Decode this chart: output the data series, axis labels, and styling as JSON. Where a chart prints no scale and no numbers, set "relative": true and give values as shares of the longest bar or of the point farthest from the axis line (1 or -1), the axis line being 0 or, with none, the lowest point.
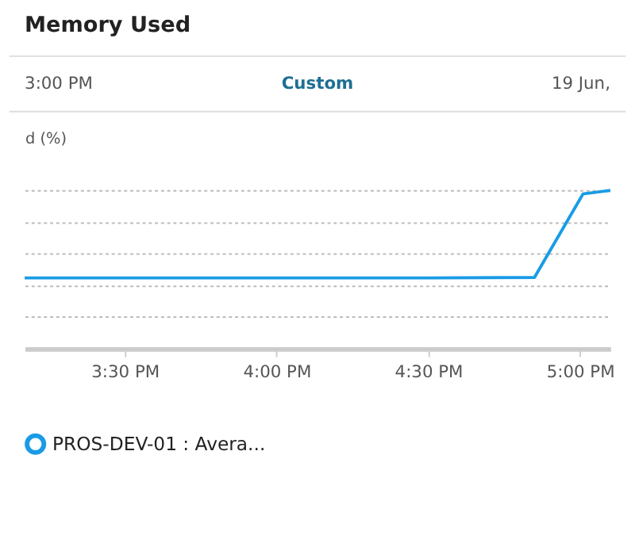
{
  "chart_data": {
    "type": "line",
    "title": "Memory Used",
    "annotations": [
      "3:00 PM",
      "Custom",
      "19 Jun,"
    ],
    "ylabel": "d (%)",
    "relative": true,
    "xlim": [
      15.17,
      17.1
    ],
    "xticks": [
      {
        "value": 15.5,
        "label": "3:30 PM"
      },
      {
        "value": 16.0,
        "label": "4:00 PM"
      },
      {
        "value": 16.5,
        "label": "4:30 PM"
      },
      {
        "value": 17.0,
        "label": "5:00 PM"
      }
    ],
    "series": [
      {
        "name": "PROS-DEV-01 : Avera...",
        "color": "#1a9be6",
        "x": [
          15.17,
          16.5,
          16.85,
          17.01,
          17.1
        ],
        "values": [
          0.447,
          0.447,
          0.45,
          0.978,
          1
        ]
      }
    ],
    "grid": "y",
    "legend": "bottom",
    "marker": "none",
    "line_style": "solid"
  }
}
